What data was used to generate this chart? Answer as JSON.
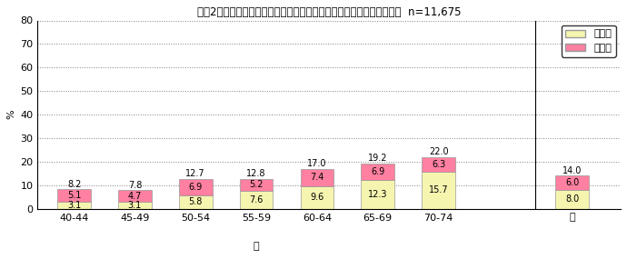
{
  "title": "令和2年度　西尾市メタボリックシンドローム該当者・予備群（女性）  n=11,675",
  "ylabel": "%",
  "xlabel": "歳",
  "categories": [
    "40-44",
    "45-49",
    "50-54",
    "55-59",
    "60-64",
    "65-69",
    "70-74",
    "計"
  ],
  "yobigun": [
    3.1,
    3.1,
    5.8,
    7.6,
    9.6,
    12.3,
    15.7,
    8.0
  ],
  "gaitousha": [
    5.1,
    4.7,
    6.9,
    5.2,
    7.4,
    6.9,
    6.3,
    6.0
  ],
  "totals": [
    8.2,
    7.8,
    12.7,
    12.8,
    17.0,
    19.2,
    22.0,
    14.0
  ],
  "color_yobigun": "#f5f5b0",
  "color_gaitousha": "#ff80a0",
  "color_border": "#888888",
  "ylim": [
    0,
    80
  ],
  "yticks": [
    0,
    10,
    20,
    30,
    40,
    50,
    60,
    70,
    80
  ],
  "legend_labels": [
    "予備群",
    "該当者"
  ],
  "bar_width": 0.55,
  "last_bar_gap": true
}
